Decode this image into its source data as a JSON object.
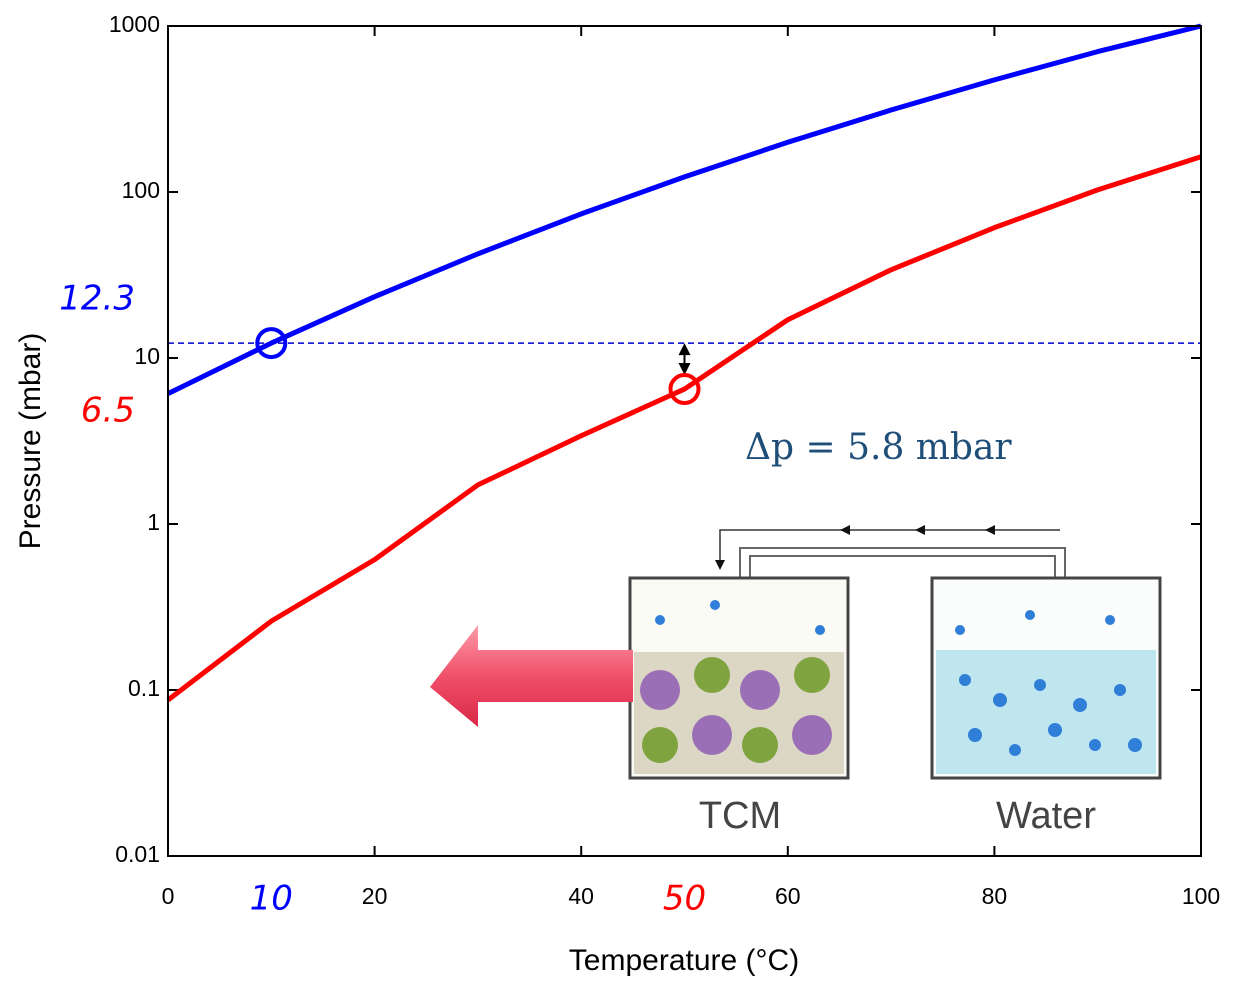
{
  "chart_data": {
    "type": "line",
    "x_label": "Temperature (°C)",
    "y_label": "Pressure (mbar)",
    "x": [
      0,
      10,
      20,
      30,
      40,
      50,
      60,
      70,
      80,
      90,
      100
    ],
    "series": [
      {
        "name": "Water",
        "color": "#0000ff",
        "values": [
          6.1,
          12.3,
          23.4,
          42.4,
          73.8,
          123.4,
          199.3,
          311.8,
          473.8,
          701,
          1000
        ]
      },
      {
        "name": "TCM",
        "color": "#ff0000",
        "values": [
          0.087,
          0.26,
          0.61,
          1.72,
          3.4,
          6.5,
          17,
          34,
          61,
          103,
          163
        ]
      }
    ],
    "xlim": [
      0,
      100
    ],
    "xticks": [
      0,
      20,
      40,
      60,
      80,
      100
    ],
    "ylim": [
      0.01,
      1000
    ],
    "yticks": [
      0.01,
      0.1,
      1,
      10,
      100,
      1000
    ],
    "log_y": true,
    "highlights": [
      {
        "x": 10,
        "y": 12.3,
        "color": "#0000ff"
      },
      {
        "x": 50,
        "y": 6.5,
        "color": "#ff0000"
      }
    ],
    "delta_label": "Δp = 5.8 mbar",
    "inset_labels": [
      "TCM",
      "Water"
    ]
  }
}
